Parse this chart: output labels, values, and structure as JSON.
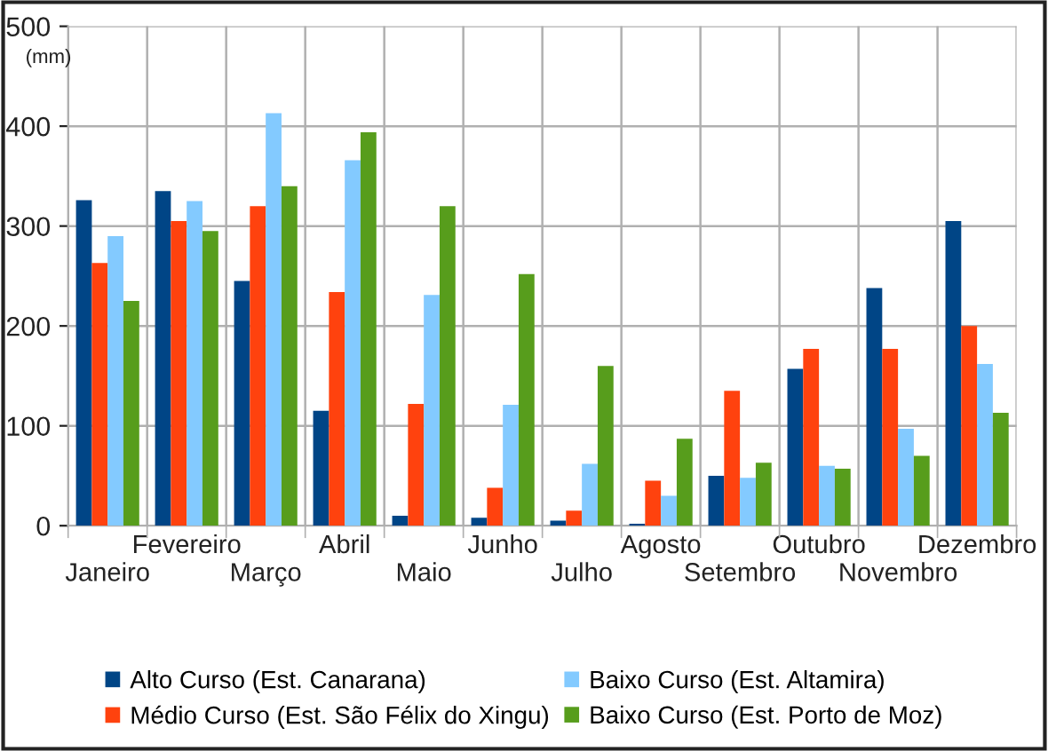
{
  "chart_data": {
    "type": "bar",
    "ylabel": "(mm)",
    "categories": [
      "Janeiro",
      "Fevereiro",
      "Março",
      "Abril",
      "Maio",
      "Junho",
      "Julho",
      "Agosto",
      "Setembro",
      "Outubro",
      "Novembro",
      "Dezembro"
    ],
    "series": [
      {
        "name": "Alto Curso (Est. Canarana)",
        "color": "#004586",
        "values": [
          326,
          335,
          245,
          115,
          10,
          8,
          5,
          2,
          50,
          157,
          238,
          305
        ]
      },
      {
        "name": "Médio Curso (Est. São Félix do Xingu)",
        "color": "#ff420e",
        "values": [
          263,
          305,
          320,
          234,
          122,
          38,
          15,
          45,
          135,
          177,
          177,
          200
        ]
      },
      {
        "name": "Baixo Curso (Est. Altamira)",
        "color": "#83caff",
        "values": [
          290,
          325,
          413,
          366,
          231,
          121,
          62,
          30,
          48,
          60,
          97,
          162
        ]
      },
      {
        "name": "Baixo Curso (Est. Porto de Moz)",
        "color": "#579d1c",
        "values": [
          225,
          295,
          340,
          394,
          320,
          252,
          160,
          87,
          63,
          57,
          70,
          113
        ]
      }
    ],
    "ylim": [
      0,
      500
    ],
    "yticks": [
      0,
      100,
      200,
      300,
      400,
      500
    ],
    "grid": true,
    "legend": "bottom"
  }
}
